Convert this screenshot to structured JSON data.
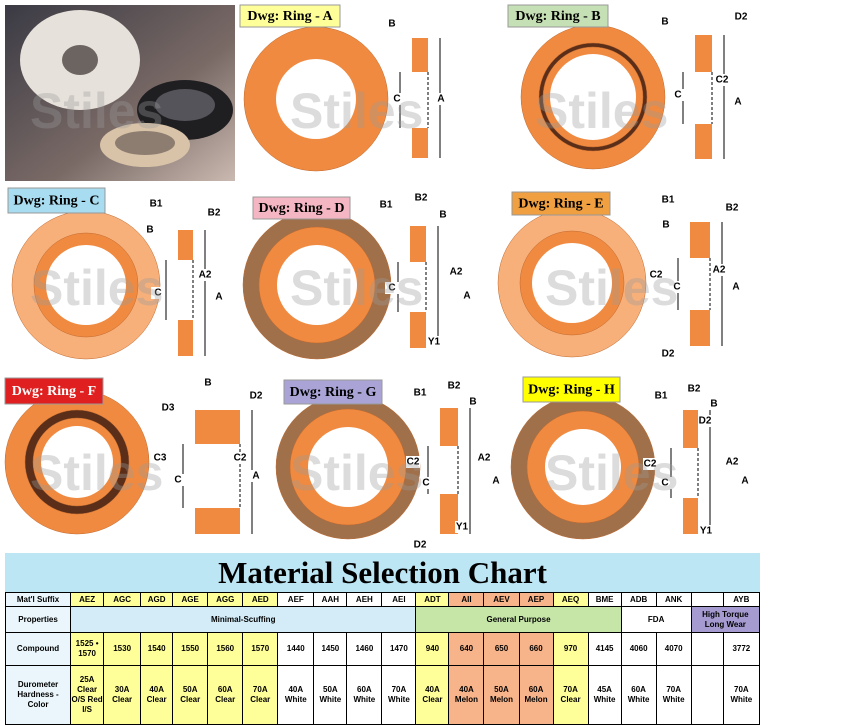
{
  "watermark": "Stiles",
  "drawings": [
    {
      "title": "Dwg: Ring - A",
      "labels": [
        "B",
        "C",
        "A"
      ]
    },
    {
      "title": "Dwg: Ring - B",
      "labels": [
        "B",
        "D2",
        "C",
        "C2",
        "A"
      ]
    },
    {
      "title": "Dwg: Ring - C",
      "labels": [
        "B1",
        "B2",
        "B",
        "C",
        "A2",
        "A"
      ]
    },
    {
      "title": "Dwg: Ring - D",
      "labels": [
        "B1",
        "B2",
        "B",
        "C",
        "A2",
        "A",
        "Y1"
      ]
    },
    {
      "title": "Dwg: Ring - E",
      "labels": [
        "B1",
        "B2",
        "B",
        "C2",
        "C",
        "A2",
        "A",
        "D2"
      ]
    },
    {
      "title": "Dwg: Ring - F",
      "labels": [
        "B",
        "D2",
        "D3",
        "C3",
        "C",
        "C2",
        "A"
      ]
    },
    {
      "title": "Dwg: Ring - G",
      "labels": [
        "B1",
        "B2",
        "B",
        "C2",
        "C",
        "A2",
        "A",
        "Y1",
        "D2"
      ]
    },
    {
      "title": "Dwg: Ring - H",
      "labels": [
        "B1",
        "B2",
        "B",
        "D2",
        "C2",
        "C",
        "A2",
        "A",
        "Y1"
      ]
    }
  ],
  "table": {
    "title": "Material Selection Chart",
    "row_headers": [
      "Mat'l Suffix",
      "Properties",
      "Compound",
      "Durometer Hardness - Color"
    ],
    "groups": [
      "Minimal-Scuffing",
      "General Purpose",
      "FDA",
      "High Torque Long Wear"
    ],
    "columns": [
      {
        "suffix": "AEZ",
        "compound": "1525 • 1570",
        "durometer": "25A Clear O/S Red I/S"
      },
      {
        "suffix": "AGC",
        "compound": "1530",
        "durometer": "30A Clear"
      },
      {
        "suffix": "AGD",
        "compound": "1540",
        "durometer": "40A Clear"
      },
      {
        "suffix": "AGE",
        "compound": "1550",
        "durometer": "50A Clear"
      },
      {
        "suffix": "AGG",
        "compound": "1560",
        "durometer": "60A Clear"
      },
      {
        "suffix": "AED",
        "compound": "1570",
        "durometer": "70A Clear"
      },
      {
        "suffix": "AEF",
        "compound": "1440",
        "durometer": "40A White"
      },
      {
        "suffix": "AAH",
        "compound": "1450",
        "durometer": "50A White"
      },
      {
        "suffix": "AEH",
        "compound": "1460",
        "durometer": "60A White"
      },
      {
        "suffix": "AEI",
        "compound": "1470",
        "durometer": "70A White"
      },
      {
        "suffix": "ADT",
        "compound": "940",
        "durometer": "40A Clear"
      },
      {
        "suffix": "AII",
        "compound": "640",
        "durometer": "40A Melon"
      },
      {
        "suffix": "AEV",
        "compound": "650",
        "durometer": "50A Melon"
      },
      {
        "suffix": "AEP",
        "compound": "660",
        "durometer": "60A Melon"
      },
      {
        "suffix": "AEQ",
        "compound": "970",
        "durometer": "70A Clear"
      },
      {
        "suffix": "BME",
        "compound": "4145",
        "durometer": "45A White"
      },
      {
        "suffix": "ADB",
        "compound": "4060",
        "durometer": "60A White"
      },
      {
        "suffix": "ANK",
        "compound": "4070",
        "durometer": "70A White"
      },
      {
        "suffix": null,
        "compound": null,
        "durometer": null
      },
      {
        "suffix": "AYB",
        "compound": "3772",
        "durometer": "70A White"
      }
    ]
  }
}
